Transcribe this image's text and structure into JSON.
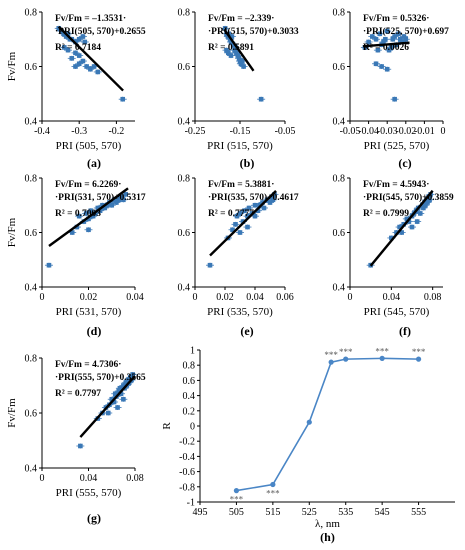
{
  "colors": {
    "points": "#3a78b6",
    "regression": "#000000",
    "line_series": "#4a86c6",
    "axis": "#000000"
  },
  "chart_data": [
    {
      "type": "scatter",
      "panel_label": "(a)",
      "xlabel": "PRI (505, 570)",
      "ylabel": "Fv/Fm",
      "xlim": [
        -0.4,
        -0.15
      ],
      "ylim": [
        0.4,
        0.8
      ],
      "xticks": [
        -0.4,
        -0.3,
        -0.2
      ],
      "xtick_labels": [
        "-0.4",
        "-0.3",
        "-0.2"
      ],
      "yticks": [
        0.4,
        0.6,
        0.8
      ],
      "ytick_labels": [
        "0.4",
        "0.6",
        "0.8"
      ],
      "equation_lines": [
        "Fv/Fm = –1.3531·",
        "·PRI(505, 570)+0.2655"
      ],
      "r2_label": "R² = 0.7184",
      "fit": {
        "slope": -1.3531,
        "intercept": 0.2655
      },
      "fit_x": [
        -0.355,
        -0.182
      ],
      "points": [
        [
          -0.355,
          0.74
        ],
        [
          -0.348,
          0.73
        ],
        [
          -0.342,
          0.72
        ],
        [
          -0.335,
          0.71
        ],
        [
          -0.33,
          0.72
        ],
        [
          -0.325,
          0.7
        ],
        [
          -0.32,
          0.7
        ],
        [
          -0.31,
          0.69
        ],
        [
          -0.3,
          0.7
        ],
        [
          -0.29,
          0.71
        ],
        [
          -0.285,
          0.69
        ],
        [
          -0.34,
          0.67
        ],
        [
          -0.33,
          0.66
        ],
        [
          -0.31,
          0.65
        ],
        [
          -0.3,
          0.64
        ],
        [
          -0.29,
          0.62
        ],
        [
          -0.28,
          0.6
        ],
        [
          -0.27,
          0.59
        ],
        [
          -0.26,
          0.6
        ],
        [
          -0.25,
          0.58
        ],
        [
          -0.32,
          0.63
        ],
        [
          -0.3,
          0.61
        ],
        [
          -0.31,
          0.6
        ],
        [
          -0.183,
          0.48
        ]
      ]
    },
    {
      "type": "scatter",
      "panel_label": "(b)",
      "xlabel": "PRI (515, 570)",
      "ylabel": "",
      "xlim": [
        -0.25,
        -0.05
      ],
      "ylim": [
        0.4,
        0.8
      ],
      "xticks": [
        -0.25,
        -0.15,
        -0.05
      ],
      "xtick_labels": [
        "-0.25",
        "-0.15",
        "-0.05"
      ],
      "yticks": [
        0.4,
        0.6,
        0.8
      ],
      "ytick_labels": [
        "0.4",
        "0.6",
        "0.8"
      ],
      "equation_lines": [
        "Fv/Fm = –2.339·",
        "·PRI(515, 570)+0.3033"
      ],
      "r2_label": "R² = 0.5891",
      "fit": {
        "slope": -2.339,
        "intercept": 0.3033
      },
      "fit_x": [
        -0.185,
        -0.12
      ],
      "points": [
        [
          -0.183,
          0.74
        ],
        [
          -0.18,
          0.72
        ],
        [
          -0.177,
          0.71
        ],
        [
          -0.175,
          0.72
        ],
        [
          -0.172,
          0.7
        ],
        [
          -0.17,
          0.69
        ],
        [
          -0.168,
          0.71
        ],
        [
          -0.165,
          0.68
        ],
        [
          -0.162,
          0.66
        ],
        [
          -0.16,
          0.67
        ],
        [
          -0.158,
          0.65
        ],
        [
          -0.155,
          0.64
        ],
        [
          -0.152,
          0.63
        ],
        [
          -0.15,
          0.62
        ],
        [
          -0.148,
          0.61
        ],
        [
          -0.145,
          0.62
        ],
        [
          -0.142,
          0.6
        ],
        [
          -0.18,
          0.66
        ],
        [
          -0.176,
          0.65
        ],
        [
          -0.17,
          0.64
        ],
        [
          -0.103,
          0.48
        ]
      ]
    },
    {
      "type": "scatter",
      "panel_label": "(c)",
      "xlabel": "PRI (525, 570)",
      "ylabel": "",
      "xlim": [
        -0.05,
        0.0
      ],
      "ylim": [
        0.4,
        0.8
      ],
      "xticks": [
        -0.05,
        -0.04,
        -0.03,
        -0.02,
        -0.01,
        0
      ],
      "xtick_labels": [
        "-0.05",
        "-0.04",
        "-0.03",
        "-0.02",
        "-0.01",
        "0"
      ],
      "yticks": [
        0.4,
        0.6,
        0.8
      ],
      "ytick_labels": [
        "0.4",
        "0.6",
        "0.8"
      ],
      "equation_lines": [
        "Fv/Fm = 0.5326·",
        "·PRI(525, 570)+0.697"
      ],
      "r2_label": "R² = 0.0026",
      "fit": {
        "slope": 0.5326,
        "intercept": 0.697
      },
      "fit_x": [
        -0.043,
        -0.018
      ],
      "points": [
        [
          -0.042,
          0.67
        ],
        [
          -0.04,
          0.69
        ],
        [
          -0.038,
          0.71
        ],
        [
          -0.036,
          0.7
        ],
        [
          -0.035,
          0.66
        ],
        [
          -0.034,
          0.72
        ],
        [
          -0.033,
          0.68
        ],
        [
          -0.032,
          0.69
        ],
        [
          -0.031,
          0.7
        ],
        [
          -0.03,
          0.73
        ],
        [
          -0.029,
          0.66
        ],
        [
          -0.028,
          0.67
        ],
        [
          -0.027,
          0.7
        ],
        [
          -0.026,
          0.71
        ],
        [
          -0.025,
          0.68
        ],
        [
          -0.024,
          0.72
        ],
        [
          -0.023,
          0.7
        ],
        [
          -0.022,
          0.69
        ],
        [
          -0.021,
          0.71
        ],
        [
          -0.02,
          0.7
        ],
        [
          -0.033,
          0.6
        ],
        [
          -0.03,
          0.59
        ],
        [
          -0.036,
          0.61
        ],
        [
          -0.026,
          0.48
        ]
      ]
    },
    {
      "type": "scatter",
      "panel_label": "(d)",
      "xlabel": "PRI (531, 570)",
      "ylabel": "Fv/Fm",
      "xlim": [
        0.0,
        0.04
      ],
      "ylim": [
        0.4,
        0.8
      ],
      "xticks": [
        0,
        0.02,
        0.04
      ],
      "xtick_labels": [
        "0",
        "0.02",
        "0.04"
      ],
      "yticks": [
        0.4,
        0.6,
        0.8
      ],
      "ytick_labels": [
        "0.4",
        "0.6",
        "0.8"
      ],
      "equation_lines": [
        "Fv/Fm = 6.2269·",
        "·PRI(531, 570)+0.5317"
      ],
      "r2_label": "R² = 0.7003",
      "fit": {
        "slope": 6.2269,
        "intercept": 0.5317
      },
      "fit_x": [
        0.003,
        0.037
      ],
      "points": [
        [
          0.003,
          0.48
        ],
        [
          0.013,
          0.6
        ],
        [
          0.015,
          0.62
        ],
        [
          0.016,
          0.66
        ],
        [
          0.018,
          0.64
        ],
        [
          0.019,
          0.67
        ],
        [
          0.02,
          0.65
        ],
        [
          0.021,
          0.68
        ],
        [
          0.022,
          0.66
        ],
        [
          0.023,
          0.67
        ],
        [
          0.024,
          0.69
        ],
        [
          0.025,
          0.68
        ],
        [
          0.026,
          0.7
        ],
        [
          0.027,
          0.69
        ],
        [
          0.028,
          0.7
        ],
        [
          0.029,
          0.71
        ],
        [
          0.03,
          0.7
        ],
        [
          0.031,
          0.72
        ],
        [
          0.032,
          0.71
        ],
        [
          0.033,
          0.72
        ],
        [
          0.034,
          0.73
        ],
        [
          0.035,
          0.72
        ],
        [
          0.036,
          0.74
        ],
        [
          0.02,
          0.61
        ]
      ]
    },
    {
      "type": "scatter",
      "panel_label": "(e)",
      "xlabel": "PRI (535, 570)",
      "ylabel": "",
      "xlim": [
        0.0,
        0.06
      ],
      "ylim": [
        0.4,
        0.8
      ],
      "xticks": [
        0,
        0.02,
        0.04,
        0.06
      ],
      "xtick_labels": [
        "0",
        "0.02",
        "0.04",
        "0.06"
      ],
      "yticks": [
        0.4,
        0.6,
        0.8
      ],
      "ytick_labels": [
        "0.4",
        "0.6",
        "0.8"
      ],
      "equation_lines": [
        "Fv/Fm = 5.3881·",
        "·PRI(535, 570)+0.4617"
      ],
      "r2_label": "R² = 0.7777",
      "fit": {
        "slope": 5.3881,
        "intercept": 0.4617
      },
      "fit_x": [
        0.01,
        0.054
      ],
      "points": [
        [
          0.01,
          0.48
        ],
        [
          0.022,
          0.58
        ],
        [
          0.025,
          0.61
        ],
        [
          0.027,
          0.63
        ],
        [
          0.028,
          0.66
        ],
        [
          0.03,
          0.67
        ],
        [
          0.032,
          0.64
        ],
        [
          0.033,
          0.68
        ],
        [
          0.035,
          0.66
        ],
        [
          0.036,
          0.69
        ],
        [
          0.038,
          0.67
        ],
        [
          0.04,
          0.7
        ],
        [
          0.042,
          0.68
        ],
        [
          0.043,
          0.7
        ],
        [
          0.045,
          0.71
        ],
        [
          0.046,
          0.69
        ],
        [
          0.048,
          0.72
        ],
        [
          0.05,
          0.71
        ],
        [
          0.051,
          0.73
        ],
        [
          0.052,
          0.72
        ],
        [
          0.053,
          0.74
        ],
        [
          0.03,
          0.6
        ],
        [
          0.035,
          0.62
        ],
        [
          0.04,
          0.66
        ]
      ]
    },
    {
      "type": "scatter",
      "panel_label": "(f)",
      "xlabel": "PRI (545, 570)",
      "ylabel": "",
      "xlim": [
        0.0,
        0.09
      ],
      "ylim": [
        0.4,
        0.8
      ],
      "xticks": [
        0,
        0.04,
        0.08
      ],
      "xtick_labels": [
        "0",
        "0.04",
        "0.08"
      ],
      "yticks": [
        0.4,
        0.6,
        0.8
      ],
      "ytick_labels": [
        "0.4",
        "0.6",
        "0.8"
      ],
      "equation_lines": [
        "Fv/Fm = 4.5943·",
        "·PRI(545, 570)+0.3859"
      ],
      "r2_label": "R² = 0.7999",
      "fit": {
        "slope": 4.5943,
        "intercept": 0.3859
      },
      "fit_x": [
        0.02,
        0.08
      ],
      "points": [
        [
          0.02,
          0.48
        ],
        [
          0.04,
          0.58
        ],
        [
          0.045,
          0.6
        ],
        [
          0.048,
          0.62
        ],
        [
          0.05,
          0.6
        ],
        [
          0.052,
          0.63
        ],
        [
          0.055,
          0.65
        ],
        [
          0.057,
          0.64
        ],
        [
          0.06,
          0.66
        ],
        [
          0.062,
          0.67
        ],
        [
          0.064,
          0.68
        ],
        [
          0.066,
          0.69
        ],
        [
          0.068,
          0.67
        ],
        [
          0.07,
          0.7
        ],
        [
          0.071,
          0.69
        ],
        [
          0.072,
          0.71
        ],
        [
          0.073,
          0.7
        ],
        [
          0.074,
          0.72
        ],
        [
          0.075,
          0.71
        ],
        [
          0.076,
          0.73
        ],
        [
          0.077,
          0.72
        ],
        [
          0.078,
          0.74
        ],
        [
          0.06,
          0.62
        ],
        [
          0.065,
          0.64
        ]
      ]
    },
    {
      "type": "scatter",
      "panel_label": "(g)",
      "xlabel": "PRI (555, 570)",
      "ylabel": "Fv/Fm",
      "xlim": [
        0.0,
        0.08
      ],
      "ylim": [
        0.4,
        0.8
      ],
      "xticks": [
        0,
        0.04,
        0.08
      ],
      "xtick_labels": [
        "0",
        "0.04",
        "0.08"
      ],
      "yticks": [
        0.4,
        0.6,
        0.8
      ],
      "ytick_labels": [
        "0.4",
        "0.6",
        "0.8"
      ],
      "equation_lines": [
        "Fv/Fm = 4.7306·",
        "·PRI(555, 570)+0.3565"
      ],
      "r2_label": "R² = 0.7797",
      "fit": {
        "slope": 4.7306,
        "intercept": 0.3565
      },
      "fit_x": [
        0.033,
        0.08
      ],
      "points": [
        [
          0.033,
          0.48
        ],
        [
          0.048,
          0.58
        ],
        [
          0.052,
          0.6
        ],
        [
          0.055,
          0.62
        ],
        [
          0.057,
          0.6
        ],
        [
          0.058,
          0.63
        ],
        [
          0.06,
          0.65
        ],
        [
          0.062,
          0.64
        ],
        [
          0.063,
          0.67
        ],
        [
          0.064,
          0.66
        ],
        [
          0.066,
          0.68
        ],
        [
          0.067,
          0.69
        ],
        [
          0.068,
          0.67
        ],
        [
          0.07,
          0.7
        ],
        [
          0.071,
          0.69
        ],
        [
          0.072,
          0.71
        ],
        [
          0.073,
          0.7
        ],
        [
          0.074,
          0.72
        ],
        [
          0.075,
          0.71
        ],
        [
          0.076,
          0.73
        ],
        [
          0.077,
          0.72
        ],
        [
          0.078,
          0.74
        ],
        [
          0.065,
          0.62
        ],
        [
          0.07,
          0.65
        ]
      ]
    },
    {
      "type": "line",
      "panel_label": "(h)",
      "xlabel": "λ, nm",
      "ylabel": "R",
      "xlim": [
        495,
        565
      ],
      "ylim": [
        -1.0,
        1.0
      ],
      "xticks": [
        495,
        505,
        515,
        525,
        535,
        545,
        555
      ],
      "xtick_labels": [
        "495",
        "505",
        "515",
        "525",
        "535",
        "545",
        "555"
      ],
      "yticks": [
        -1.0,
        -0.8,
        -0.6,
        -0.4,
        -0.2,
        0,
        0.2,
        0.4,
        0.6,
        0.8,
        1.0
      ],
      "ytick_labels": [
        "-1",
        "-0.8",
        "-0.6",
        "-0.4",
        "-0.2",
        "0",
        "0.2",
        "0.4",
        "0.6",
        "0.8",
        "1"
      ],
      "x": [
        505,
        515,
        525,
        531,
        535,
        545,
        555
      ],
      "values": [
        -0.85,
        -0.77,
        0.05,
        0.84,
        0.88,
        0.89,
        0.88
      ],
      "annotations": [
        {
          "x": 505,
          "text": "***",
          "position": "below"
        },
        {
          "x": 515,
          "text": "***",
          "position": "below"
        },
        {
          "x": 531,
          "text": "***",
          "position": "above"
        },
        {
          "x": 535,
          "text": "***",
          "position": "above"
        },
        {
          "x": 545,
          "text": "***",
          "position": "above"
        },
        {
          "x": 555,
          "text": "***",
          "position": "above"
        }
      ]
    }
  ]
}
